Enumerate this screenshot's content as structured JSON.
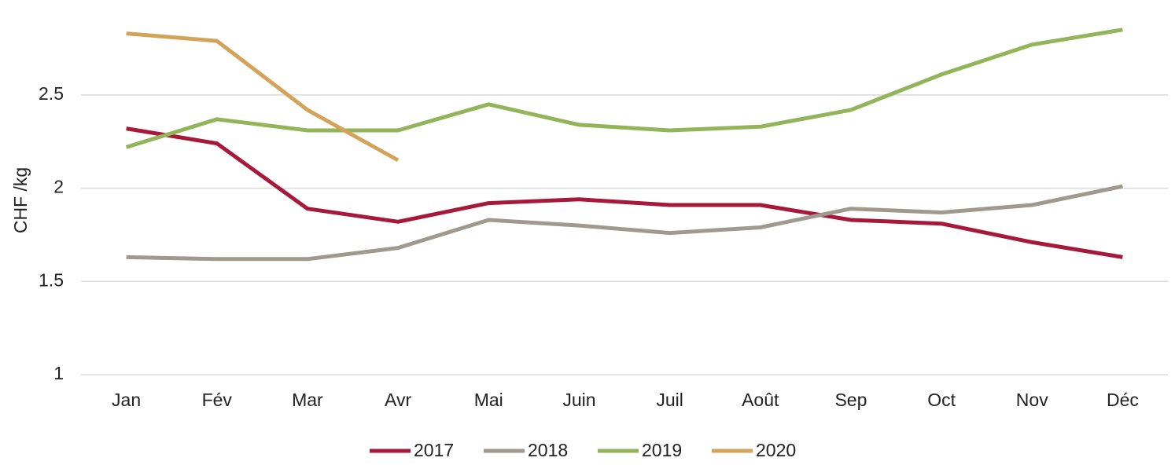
{
  "chart_data": {
    "type": "line",
    "y_label": "CHF /kg",
    "categories": [
      "Jan",
      "Fév",
      "Mar",
      "Avr",
      "Mai",
      "Juin",
      "Juil",
      "Août",
      "Sep",
      "Oct",
      "Nov",
      "Déc"
    ],
    "series": [
      {
        "name": "2017",
        "color": "#a6193a",
        "values": [
          2.32,
          2.24,
          1.89,
          1.82,
          1.92,
          1.94,
          1.91,
          1.91,
          1.83,
          1.81,
          1.71,
          1.63
        ]
      },
      {
        "name": "2018",
        "color": "#a09a8e",
        "values": [
          1.63,
          1.62,
          1.62,
          1.68,
          1.83,
          1.8,
          1.76,
          1.79,
          1.89,
          1.87,
          1.91,
          2.01
        ]
      },
      {
        "name": "2019",
        "color": "#93b55a",
        "values": [
          2.22,
          2.37,
          2.31,
          2.31,
          2.45,
          2.34,
          2.31,
          2.33,
          2.42,
          2.61,
          2.77,
          2.85
        ]
      },
      {
        "name": "2020",
        "color": "#d4a35a",
        "values": [
          2.83,
          2.79,
          2.42,
          2.15,
          null,
          null,
          null,
          null,
          null,
          null,
          null,
          null
        ]
      }
    ],
    "ylim": [
      1,
      3
    ],
    "yticks": [
      1,
      1.5,
      2,
      2.5
    ],
    "grid": true,
    "legend": "bottom"
  }
}
